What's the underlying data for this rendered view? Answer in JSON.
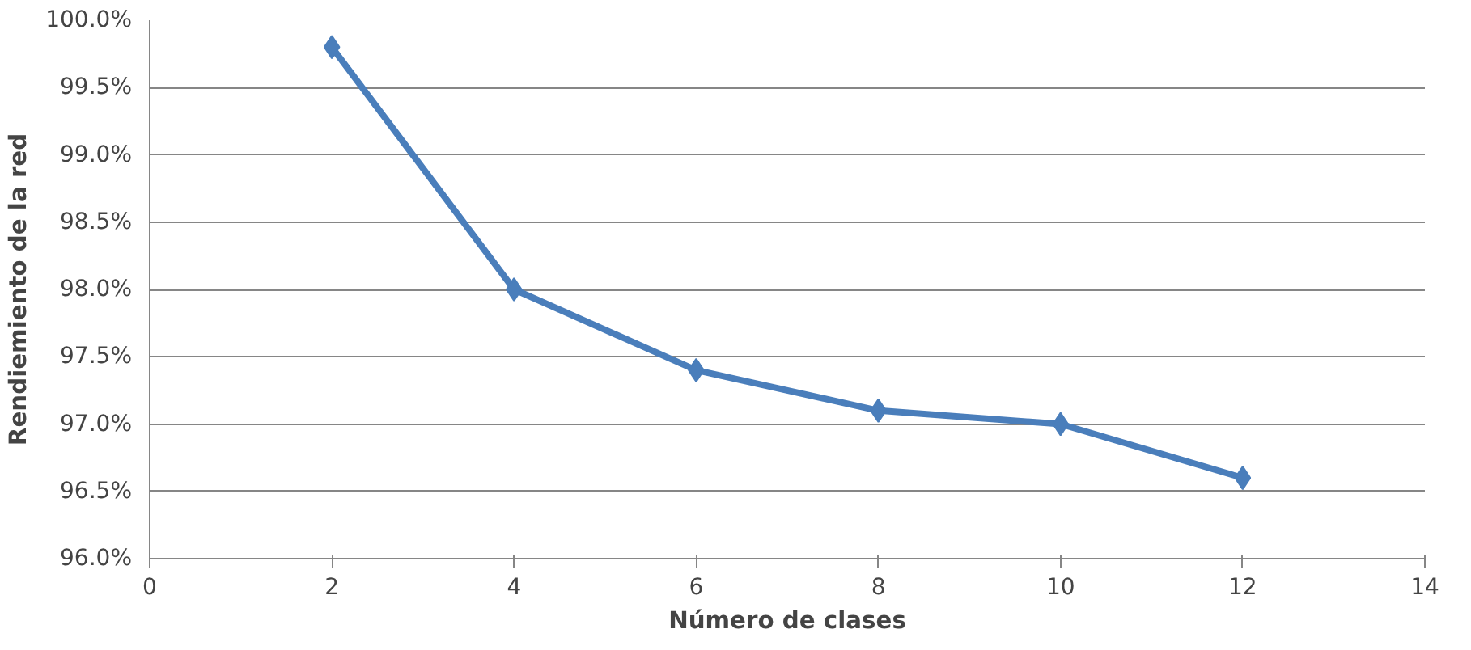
{
  "chart_data": {
    "type": "line",
    "xlabel": "Número de clases",
    "ylabel": "Rendiemiento de la red",
    "x": [
      2,
      4,
      6,
      8,
      10,
      12
    ],
    "series": [
      {
        "color": "#4a7ebb",
        "values": [
          99.8,
          98.0,
          97.4,
          97.1,
          97.0,
          96.6
        ]
      }
    ],
    "xlim": [
      0,
      14
    ],
    "xticks": [
      0,
      2,
      4,
      6,
      8,
      10,
      12,
      14
    ],
    "ylim": [
      96,
      100
    ],
    "yticks": [
      {
        "value": 96,
        "label": "96.0%"
      },
      {
        "value": 96.5,
        "label": "96.5%"
      },
      {
        "value": 97,
        "label": "97.0%"
      },
      {
        "value": 97.5,
        "label": "97.5%"
      },
      {
        "value": 98,
        "label": "98.0%"
      },
      {
        "value": 98.5,
        "label": "98.5%"
      },
      {
        "value": 99,
        "label": "99.0%"
      },
      {
        "value": 99.5,
        "label": "99.5%"
      },
      {
        "value": 100,
        "label": "100.0%"
      }
    ],
    "grid": "y",
    "marker": "diamond",
    "line_style": "solid"
  }
}
